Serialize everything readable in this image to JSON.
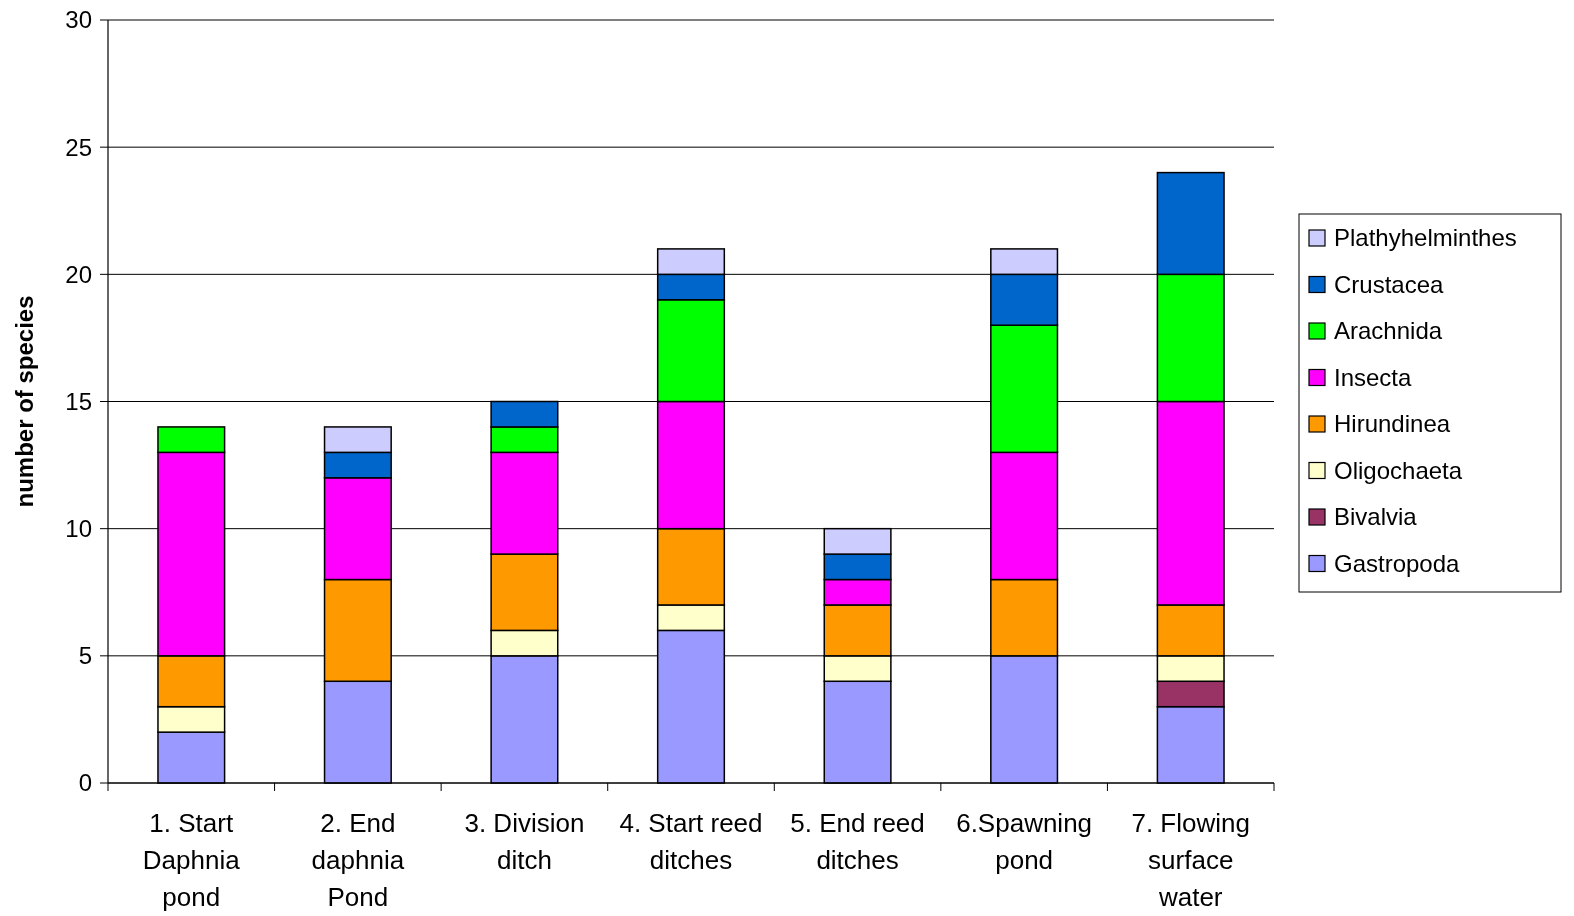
{
  "chart_data": {
    "type": "bar",
    "stacked": true,
    "ylabel": "number of species",
    "categories": [
      "1. Start Daphnia pond",
      "2. End daphnia Pond",
      "3. Division ditch",
      "4. Start reed ditches",
      "5. End reed ditches",
      "6.Spawning pond",
      "7. Flowing surface water"
    ],
    "series": [
      {
        "name": "Gastropoda",
        "color": "#9999ff",
        "values": [
          2,
          4,
          5,
          6,
          4,
          5,
          3
        ]
      },
      {
        "name": "Bivalvia",
        "color": "#993366",
        "values": [
          0,
          0,
          0,
          0,
          0,
          0,
          1
        ]
      },
      {
        "name": "Oligochaeta",
        "color": "#ffffcc",
        "values": [
          1,
          0,
          1,
          1,
          1,
          0,
          1
        ]
      },
      {
        "name": "Hirundinea",
        "color": "#ff9900",
        "values": [
          2,
          4,
          3,
          3,
          2,
          3,
          2
        ]
      },
      {
        "name": "Insecta",
        "color": "#ff00ff",
        "values": [
          8,
          4,
          4,
          5,
          1,
          5,
          8
        ]
      },
      {
        "name": "Arachnida",
        "color": "#00ff00",
        "values": [
          1,
          0,
          1,
          4,
          0,
          5,
          5
        ]
      },
      {
        "name": "Crustacea",
        "color": "#0066cc",
        "values": [
          0,
          1,
          1,
          1,
          1,
          2,
          4
        ]
      },
      {
        "name": "Plathyhelminthes",
        "color": "#ccccff",
        "values": [
          0,
          1,
          0,
          1,
          1,
          1,
          0
        ]
      }
    ],
    "ylim": [
      0,
      30
    ],
    "yticks": [
      0,
      5,
      10,
      15,
      20,
      25,
      30
    ],
    "grid": "y",
    "legend": "right"
  }
}
